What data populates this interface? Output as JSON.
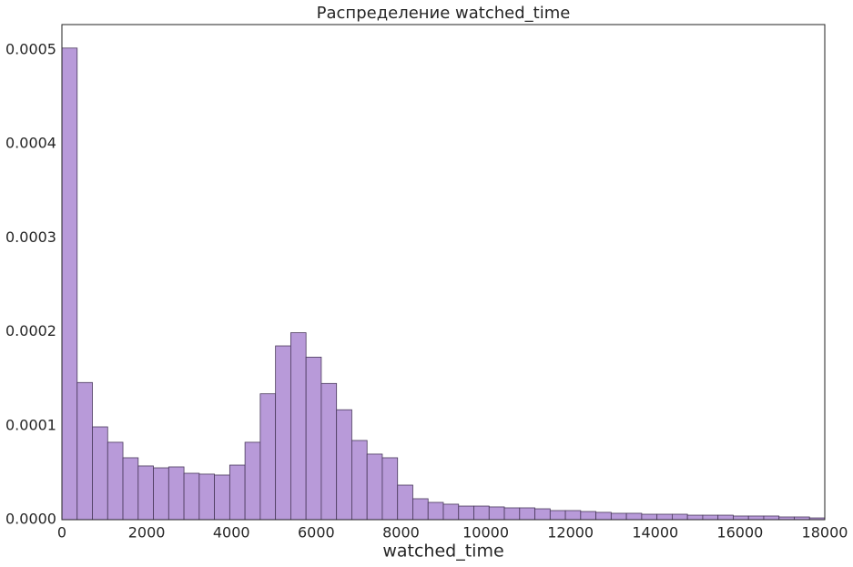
{
  "chart_data": {
    "type": "histogram",
    "title": "Распределение watched_time",
    "x_label": "watched_time",
    "bins": [
      0,
      360,
      720,
      1080,
      1440,
      1800,
      2160,
      2520,
      2880,
      3240,
      3600,
      3960,
      4320,
      4680,
      5040,
      5400,
      5760,
      6120,
      6480,
      6840,
      7200,
      7560,
      7920,
      8280,
      8640,
      9000,
      9360,
      9720,
      10080,
      10440,
      10800,
      11160,
      11520,
      11880,
      12240,
      12600,
      12960,
      13320,
      13680,
      14040,
      14400,
      14760,
      15120,
      15480,
      15840,
      16200,
      16560,
      16920,
      17280,
      17640,
      18000
    ],
    "values": [
      0.000502,
      0.000146,
      9.88e-05,
      8.24e-05,
      6.59e-05,
      5.72e-05,
      5.52e-05,
      5.62e-05,
      4.94e-05,
      4.85e-05,
      4.75e-05,
      5.81e-05,
      8.24e-05,
      0.000134,
      0.000185,
      0.000199,
      0.000173,
      0.000145,
      0.000117,
      8.43e-05,
      6.98e-05,
      6.59e-05,
      3.68e-05,
      2.23e-05,
      1.84e-05,
      1.65e-05,
      1.45e-05,
      1.45e-05,
      1.36e-05,
      1.26e-05,
      1.26e-05,
      1.16e-05,
      9.7e-06,
      9.7e-06,
      8.7e-06,
      7.8e-06,
      6.8e-06,
      6.8e-06,
      5.8e-06,
      5.8e-06,
      5.8e-06,
      4.8e-06,
      4.8e-06,
      4.8e-06,
      3.9e-06,
      3.9e-06,
      3.9e-06,
      2.9e-06,
      2.9e-06,
      1.9e-06
    ],
    "color": "#b89ad9",
    "edge_color": "#4a3a5c",
    "xlim": [
      0,
      18000
    ],
    "xticks": [
      0,
      2000,
      4000,
      6000,
      8000,
      10000,
      12000,
      14000,
      16000,
      18000
    ],
    "ylim": [
      0,
      0.000527
    ],
    "yticks": [
      {
        "value": 0,
        "label": "0.0000"
      },
      {
        "value": 0.0001,
        "label": "0.0001"
      },
      {
        "value": 0.0002,
        "label": "0.0002"
      },
      {
        "value": 0.0003,
        "label": "0.0003"
      },
      {
        "value": 0.0004,
        "label": "0.0004"
      },
      {
        "value": 0.0005,
        "label": "0.0005"
      }
    ],
    "grid": false
  }
}
